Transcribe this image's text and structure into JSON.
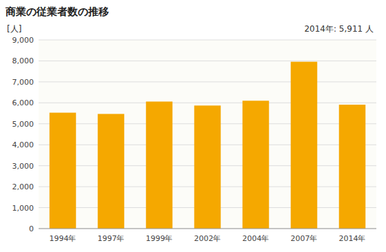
{
  "chart_data": {
    "type": "bar",
    "title": "商業の従業者数の推移",
    "y_label": "[人]",
    "annotation": "2014年: 5,911 人",
    "categories": [
      "1994年",
      "1997年",
      "1999年",
      "2002年",
      "2004年",
      "2007年",
      "2014年"
    ],
    "values": [
      5530,
      5470,
      6060,
      5870,
      6100,
      7960,
      5911
    ],
    "color": "#F5A800",
    "ylim": [
      0,
      9000
    ],
    "yticks": [
      0,
      {
        "value": 1000,
        "label": "1,000"
      },
      {
        "value": 2000,
        "label": "2,000"
      },
      {
        "value": 3000,
        "label": "3,000"
      },
      {
        "value": 4000,
        "label": "4,000"
      },
      {
        "value": 5000,
        "label": "5,000"
      },
      {
        "value": 6000,
        "label": "6,000"
      },
      {
        "value": 7000,
        "label": "7,000"
      },
      {
        "value": 8000,
        "label": "8,000"
      },
      {
        "value": 9000,
        "label": "9,000"
      }
    ],
    "grid": true
  }
}
